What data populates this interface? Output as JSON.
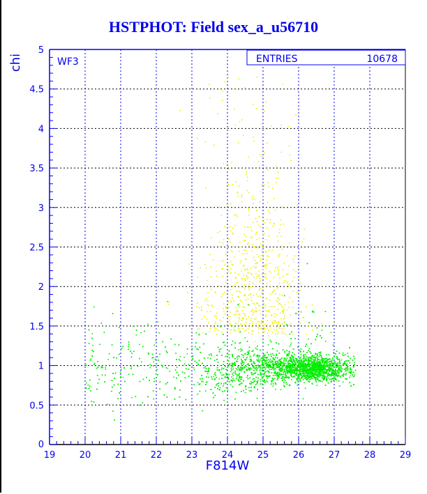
{
  "title": "HSTPHOT: Field sex_a_u56710",
  "chart_data": {
    "type": "scatter",
    "title": "HSTPHOT: Field sex_a_u56710",
    "xlabel": "F814W",
    "ylabel": "chi",
    "xlim": [
      19,
      29
    ],
    "ylim": [
      0,
      5
    ],
    "xticks": [
      "19",
      "20",
      "21",
      "22",
      "23",
      "24",
      "25",
      "26",
      "27",
      "28",
      "29"
    ],
    "yticks": [
      "0",
      "0.5",
      "1",
      "1.5",
      "2",
      "2.5",
      "3",
      "3.5",
      "4",
      "4.5",
      "5"
    ],
    "grid": true,
    "annotation": "WF3",
    "stats": {
      "label": "ENTRIES",
      "value": "10678"
    },
    "series": [
      {
        "color": "#00ee00",
        "description_range_x": [
          19.8,
          27.7
        ],
        "typical_y": 1.0
      },
      {
        "color": "#eeee00",
        "description_range_x": [
          22.3,
          27.0
        ],
        "typical_y": 2.2
      }
    ]
  }
}
